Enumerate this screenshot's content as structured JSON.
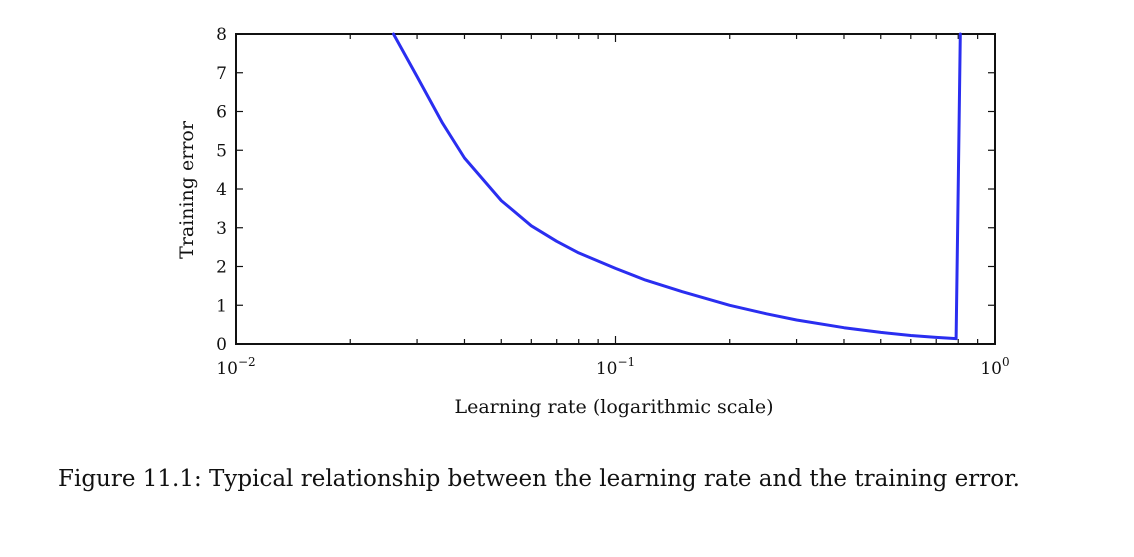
{
  "chart_data": {
    "type": "line",
    "title": "",
    "xlabel": "Learning rate (logarithmic scale)",
    "ylabel": "Training error",
    "x_scale": "log",
    "xlim": [
      0.01,
      1
    ],
    "ylim": [
      0,
      8
    ],
    "grid": false,
    "legend": "none",
    "x_ticks": [
      {
        "base": "10",
        "exp": "−2"
      },
      {
        "base": "10",
        "exp": "−1"
      },
      {
        "base": "10",
        "exp": "0"
      }
    ],
    "y_ticks": [
      "0",
      "1",
      "2",
      "3",
      "4",
      "5",
      "6",
      "7",
      "8"
    ],
    "series": [
      {
        "color": "#2a2ef0",
        "x": [
          0.026,
          0.03,
          0.035,
          0.04,
          0.05,
          0.06,
          0.07,
          0.08,
          0.1,
          0.12,
          0.15,
          0.2,
          0.25,
          0.3,
          0.4,
          0.5,
          0.6,
          0.7,
          0.79,
          0.8,
          0.81
        ],
        "y": [
          8.0,
          6.9,
          5.7,
          4.8,
          3.7,
          3.05,
          2.65,
          2.35,
          1.95,
          1.65,
          1.35,
          1.0,
          0.78,
          0.62,
          0.42,
          0.3,
          0.22,
          0.17,
          0.14,
          4.0,
          8.0
        ]
      }
    ]
  },
  "caption": "Figure 11.1: Typical relationship between the learning rate and the training error."
}
